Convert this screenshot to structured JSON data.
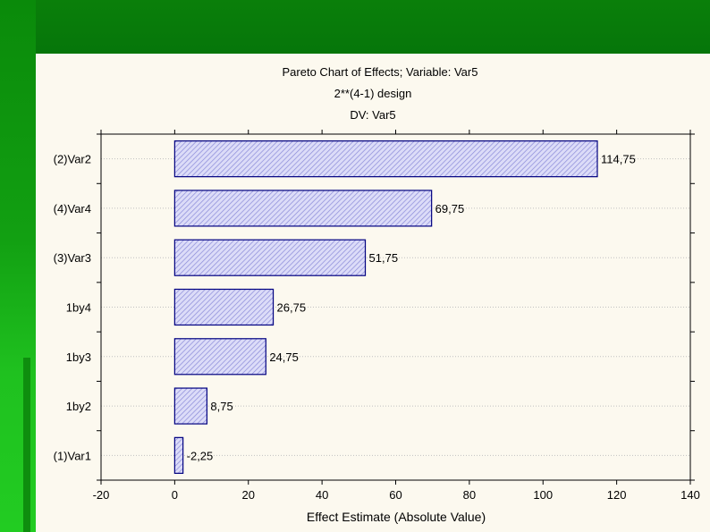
{
  "chart_data": {
    "type": "bar",
    "orientation": "horizontal",
    "title": "Pareto Chart of Effects; Variable: Var5",
    "subtitle": [
      "2**(4-1) design",
      "DV: Var5"
    ],
    "xlabel": "Effect Estimate (Absolute Value)",
    "ylabel": "",
    "categories": [
      "(2)Var2",
      "(4)Var4",
      "(3)Var3",
      "1by4",
      "1by3",
      "1by2",
      "(1)Var1"
    ],
    "values": [
      114.75,
      69.75,
      51.75,
      26.75,
      24.75,
      8.75,
      2.25
    ],
    "value_labels": [
      "114,75",
      "69,75",
      "51,75",
      "26,75",
      "24,75",
      "8,75",
      "-2,25"
    ],
    "xlim": [
      -20,
      140
    ],
    "xticks": [
      -20,
      0,
      20,
      40,
      60,
      80,
      100,
      120,
      140
    ],
    "grid": true,
    "bar_fill": "#c8c8f0",
    "bar_stroke": "#000080",
    "grid_color": "#c0c0c0"
  }
}
